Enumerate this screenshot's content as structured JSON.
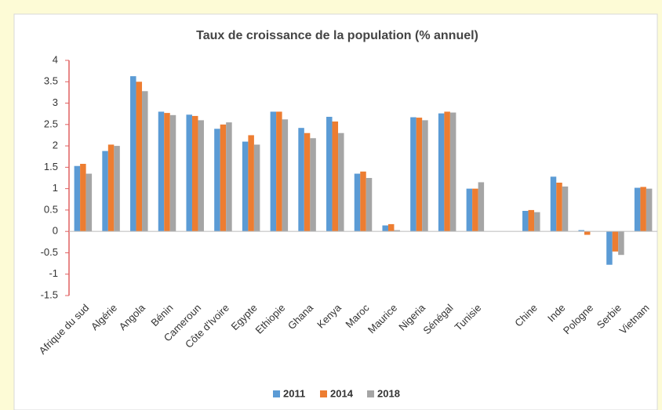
{
  "chart_data": {
    "type": "bar",
    "title": "Taux de croissance de la population (% annuel)",
    "categories": [
      "Afrique du sud",
      "Algérie",
      "Angola",
      "Bénin",
      "Cameroun",
      "Côte d'Ivoire",
      "Egypte",
      "Ethiopie",
      "Ghana",
      "Kenya",
      "Maroc",
      "Maurice",
      "Nigeria",
      "Sénégal",
      "Tunisie",
      null,
      "Chine",
      "Inde",
      "Pologne",
      "Serbie",
      "Vietnam"
    ],
    "series": [
      {
        "name": "2011",
        "color": "#5b9bd5",
        "values": [
          1.53,
          1.88,
          3.63,
          2.8,
          2.73,
          2.4,
          2.1,
          2.8,
          2.42,
          2.68,
          1.35,
          0.14,
          2.67,
          2.76,
          1.0,
          null,
          0.48,
          1.28,
          0.03,
          -0.78,
          1.02
        ]
      },
      {
        "name": "2014",
        "color": "#ed7d31",
        "values": [
          1.58,
          2.03,
          3.5,
          2.77,
          2.7,
          2.5,
          2.25,
          2.8,
          2.3,
          2.57,
          1.4,
          0.17,
          2.66,
          2.8,
          1.0,
          null,
          0.5,
          1.14,
          -0.08,
          -0.47,
          1.04
        ]
      },
      {
        "name": "2018",
        "color": "#a5a5a5",
        "values": [
          1.35,
          2.0,
          3.28,
          2.72,
          2.6,
          2.55,
          2.03,
          2.62,
          2.18,
          2.3,
          1.25,
          0.03,
          2.6,
          2.78,
          1.15,
          null,
          0.45,
          1.05,
          0.0,
          -0.55,
          1.0
        ]
      }
    ],
    "ylim": [
      -1.5,
      4
    ],
    "yticks": [
      -1.5,
      -1,
      -0.5,
      0,
      0.5,
      1,
      1.5,
      2,
      2.5,
      3,
      3.5,
      4
    ],
    "grid": false,
    "legend": "bottom"
  }
}
